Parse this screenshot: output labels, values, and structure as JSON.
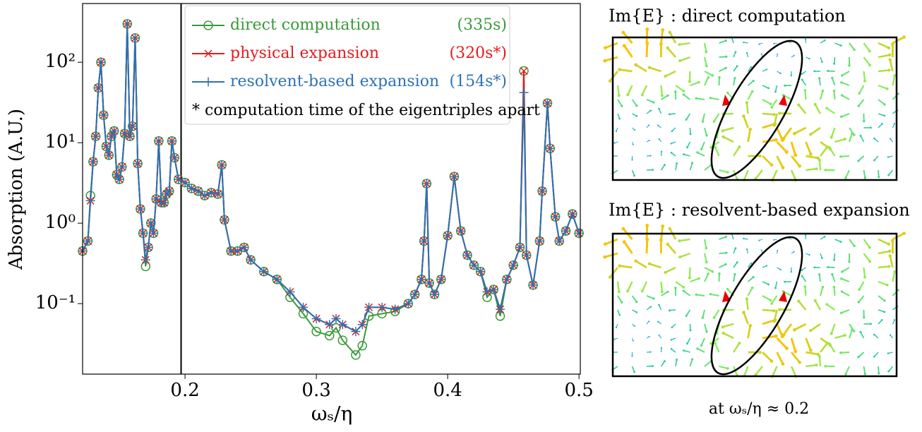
{
  "chart_data": {
    "type": "line",
    "xlabel": "ωₛ/η",
    "ylabel": "Absorption (A.U.)",
    "xlim": [
      0.122,
      0.501
    ],
    "xticks": [
      0.2,
      0.3,
      0.4,
      0.5
    ],
    "ylim": [
      0.0133,
      537
    ],
    "log_y": true,
    "yticks": [
      {
        "value": 0.1,
        "label": "10⁻¹"
      },
      {
        "value": 1,
        "label": "10⁰"
      },
      {
        "value": 10,
        "label": "10¹"
      },
      {
        "value": 100,
        "label": "10²"
      }
    ],
    "vline": 0.197,
    "legend_position": "top",
    "legend_note": "* computation time of the eigentriples apart",
    "x": [
      0.122,
      0.126,
      0.128,
      0.13,
      0.132,
      0.134,
      0.136,
      0.138,
      0.14,
      0.142,
      0.144,
      0.146,
      0.148,
      0.15,
      0.152,
      0.154,
      0.156,
      0.158,
      0.16,
      0.162,
      0.164,
      0.166,
      0.168,
      0.17,
      0.172,
      0.174,
      0.176,
      0.178,
      0.18,
      0.182,
      0.184,
      0.186,
      0.188,
      0.19,
      0.192,
      0.195,
      0.2,
      0.205,
      0.21,
      0.215,
      0.22,
      0.225,
      0.228,
      0.23,
      0.235,
      0.24,
      0.245,
      0.25,
      0.26,
      0.27,
      0.28,
      0.29,
      0.3,
      0.31,
      0.315,
      0.32,
      0.33,
      0.335,
      0.34,
      0.35,
      0.36,
      0.37,
      0.375,
      0.38,
      0.382,
      0.384,
      0.386,
      0.39,
      0.395,
      0.4,
      0.405,
      0.41,
      0.415,
      0.42,
      0.425,
      0.43,
      0.435,
      0.44,
      0.445,
      0.45,
      0.455,
      0.458,
      0.46,
      0.465,
      0.47,
      0.472,
      0.476,
      0.478,
      0.482,
      0.485,
      0.49,
      0.495,
      0.5
    ],
    "series": [
      {
        "name": "direct computation",
        "time": "(335s)",
        "color": "#3a9a3a",
        "marker": "circle",
        "values": [
          0.45,
          0.6,
          2.2,
          5.8,
          12,
          48,
          100,
          22,
          9,
          7,
          12,
          14,
          4,
          3.5,
          5,
          13,
          300,
          12,
          16,
          200,
          5.5,
          1.5,
          0.75,
          0.29,
          0.5,
          1.0,
          0.75,
          2.0,
          10.5,
          1.8,
          1.8,
          2.3,
          2.5,
          10.5,
          6.5,
          3.5,
          3.2,
          2.7,
          2.5,
          2.2,
          2.4,
          2.3,
          5.3,
          1.1,
          0.45,
          0.45,
          0.5,
          0.35,
          0.25,
          0.2,
          0.12,
          0.075,
          0.045,
          0.04,
          0.05,
          0.035,
          0.023,
          0.03,
          0.07,
          0.075,
          0.08,
          0.1,
          0.13,
          0.2,
          0.6,
          3.1,
          0.18,
          0.13,
          0.2,
          0.7,
          3.8,
          0.8,
          0.4,
          0.3,
          0.25,
          0.12,
          0.15,
          0.07,
          0.2,
          0.3,
          0.5,
          78,
          0.4,
          0.17,
          0.6,
          2.5,
          31,
          8.5,
          1.2,
          0.6,
          0.8,
          1.3,
          0.75
        ]
      },
      {
        "name": "physical expansion",
        "time": "(320s*)",
        "color": "#e41a1c",
        "marker": "x",
        "values": [
          0.45,
          0.6,
          1.9,
          5.8,
          12,
          48,
          100,
          22,
          9,
          7,
          12,
          14,
          4,
          3.5,
          5,
          13,
          300,
          12,
          16,
          200,
          5.5,
          1.5,
          0.75,
          0.35,
          0.5,
          1.0,
          0.75,
          2.0,
          10.5,
          1.8,
          1.8,
          2.3,
          2.5,
          10.5,
          6.5,
          3.5,
          3.2,
          2.7,
          2.5,
          2.2,
          2.4,
          2.3,
          5.3,
          1.1,
          0.45,
          0.45,
          0.5,
          0.35,
          0.25,
          0.2,
          0.14,
          0.09,
          0.065,
          0.055,
          0.065,
          0.055,
          0.045,
          0.055,
          0.09,
          0.09,
          0.085,
          0.1,
          0.13,
          0.2,
          0.6,
          3.1,
          0.18,
          0.13,
          0.2,
          0.7,
          3.8,
          0.8,
          0.4,
          0.3,
          0.25,
          0.14,
          0.15,
          0.085,
          0.2,
          0.3,
          0.5,
          78,
          0.4,
          0.17,
          0.6,
          2.5,
          31,
          8.5,
          1.2,
          0.6,
          0.8,
          1.3,
          0.75
        ]
      },
      {
        "name": "resolvent-based expansion",
        "time": "(154s*)",
        "color": "#2c72b4",
        "marker": "plus",
        "values": [
          0.45,
          0.6,
          1.9,
          5.8,
          12,
          48,
          100,
          22,
          9,
          7,
          12,
          14,
          4,
          3.5,
          5,
          13,
          300,
          12,
          16,
          200,
          5.5,
          1.5,
          0.75,
          0.35,
          0.5,
          1.0,
          0.75,
          2.0,
          10.5,
          1.8,
          1.8,
          2.3,
          2.5,
          10.5,
          6.5,
          3.5,
          3.2,
          2.7,
          2.5,
          2.2,
          2.4,
          2.3,
          5.3,
          1.1,
          0.45,
          0.45,
          0.5,
          0.35,
          0.25,
          0.2,
          0.14,
          0.09,
          0.065,
          0.055,
          0.065,
          0.055,
          0.045,
          0.055,
          0.09,
          0.09,
          0.085,
          0.1,
          0.13,
          0.2,
          0.6,
          3.1,
          0.18,
          0.13,
          0.2,
          0.7,
          3.8,
          0.8,
          0.4,
          0.3,
          0.25,
          0.14,
          0.15,
          0.085,
          0.2,
          0.3,
          0.5,
          42,
          0.4,
          0.17,
          0.6,
          2.5,
          31,
          8.5,
          1.2,
          0.6,
          0.8,
          1.3,
          0.75
        ]
      }
    ]
  },
  "panels": [
    {
      "title": "Im{E} : direct computation"
    },
    {
      "title": "Im{E} : resolvent-based expansion"
    }
  ],
  "caption": "at ωₛ/η ≈ 0.2"
}
